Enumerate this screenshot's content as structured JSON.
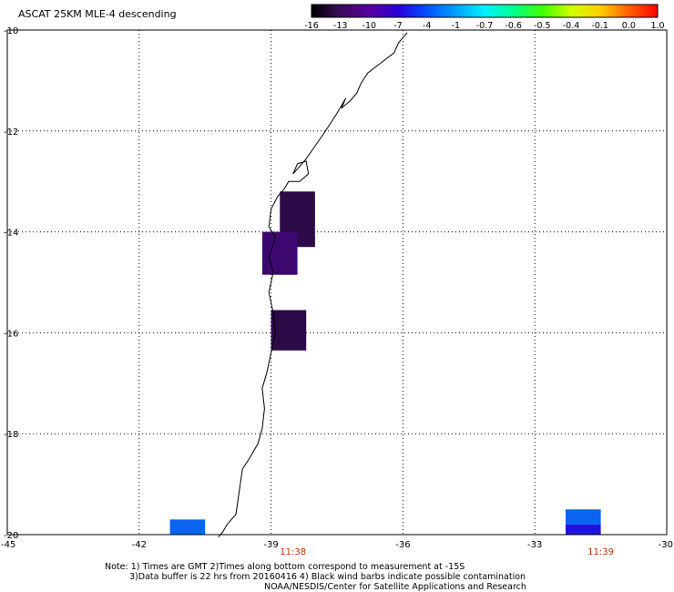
{
  "title": "ASCAT 25KM MLE-4 descending",
  "colorbar": {
    "labels": [
      "-16",
      "-13",
      "-10",
      "-7",
      "-4",
      "-1",
      "-0.7",
      "-0.6",
      "-0.5",
      "-0.4",
      "-0.1",
      "0.0",
      "1.0"
    ],
    "colors": [
      "#000000",
      "#3a0a5a",
      "#5a00a0",
      "#2a00d8",
      "#0050ff",
      "#00a0ff",
      "#00f0ff",
      "#00ff90",
      "#40ff00",
      "#d0ff00",
      "#ffd000",
      "#ff6000",
      "#ff0000"
    ]
  },
  "y_axis": {
    "labels": [
      "-10",
      "-12",
      "-14",
      "-16",
      "-18",
      "-20"
    ],
    "values": [
      -10,
      -12,
      -14,
      -16,
      -18,
      -20
    ]
  },
  "x_axis": {
    "labels": [
      "-45",
      "-42",
      "-39",
      "-36",
      "-33",
      "-30"
    ],
    "values": [
      -45,
      -42,
      -39,
      -36,
      -33,
      -30
    ]
  },
  "time_labels": [
    {
      "text": "11:38",
      "lon": -38.5
    },
    {
      "text": "11:39",
      "lon": -31.5
    }
  ],
  "time_label_color": "#c03000",
  "cells": [
    {
      "lon0": -38.8,
      "lon1": -38.0,
      "lat0": -13.2,
      "lat1": -14.3,
      "color": "#2c0a48"
    },
    {
      "lon0": -39.2,
      "lon1": -38.4,
      "lat0": -14.0,
      "lat1": -14.85,
      "color": "#3c0870"
    },
    {
      "lon0": -39.0,
      "lon1": -38.2,
      "lat0": -15.55,
      "lat1": -16.35,
      "color": "#2c0a48"
    },
    {
      "lon0": -41.3,
      "lon1": -40.5,
      "lat0": -19.7,
      "lat1": -20.0,
      "color": "#0a64f0"
    },
    {
      "lon0": -32.3,
      "lon1": -31.5,
      "lat0": -19.5,
      "lat1": -19.8,
      "color": "#0a64f0"
    },
    {
      "lon0": -32.3,
      "lon1": -31.5,
      "lat0": -19.8,
      "lat1": -20.0,
      "color": "#1e14dc"
    }
  ],
  "coastline": [
    [
      -35.9,
      -10.05
    ],
    [
      -36.1,
      -10.25
    ],
    [
      -36.2,
      -10.45
    ],
    [
      -36.5,
      -10.65
    ],
    [
      -36.8,
      -10.85
    ],
    [
      -36.95,
      -11.05
    ],
    [
      -37.05,
      -11.25
    ],
    [
      -37.2,
      -11.4
    ],
    [
      -37.4,
      -11.55
    ],
    [
      -37.3,
      -11.35
    ],
    [
      -37.5,
      -11.65
    ],
    [
      -37.65,
      -11.85
    ],
    [
      -37.8,
      -12.05
    ],
    [
      -38.0,
      -12.3
    ],
    [
      -38.2,
      -12.55
    ],
    [
      -38.4,
      -12.75
    ],
    [
      -38.5,
      -12.85
    ],
    [
      -38.4,
      -12.65
    ],
    [
      -38.2,
      -12.6
    ],
    [
      -38.15,
      -12.85
    ],
    [
      -38.35,
      -13.0
    ],
    [
      -38.6,
      -13.0
    ],
    [
      -38.7,
      -13.15
    ],
    [
      -38.85,
      -13.3
    ],
    [
      -39.0,
      -13.55
    ],
    [
      -39.05,
      -13.9
    ],
    [
      -38.9,
      -14.1
    ],
    [
      -39.05,
      -14.5
    ],
    [
      -38.95,
      -14.8
    ],
    [
      -39.05,
      -15.2
    ],
    [
      -38.95,
      -15.6
    ],
    [
      -38.9,
      -16.0
    ],
    [
      -39.0,
      -16.4
    ],
    [
      -39.1,
      -16.8
    ],
    [
      -39.2,
      -17.1
    ],
    [
      -39.15,
      -17.5
    ],
    [
      -39.2,
      -17.9
    ],
    [
      -39.3,
      -18.2
    ],
    [
      -39.5,
      -18.5
    ],
    [
      -39.65,
      -18.7
    ],
    [
      -39.7,
      -19.0
    ],
    [
      -39.75,
      -19.3
    ],
    [
      -39.8,
      -19.6
    ],
    [
      -40.0,
      -19.8
    ],
    [
      -40.1,
      -19.95
    ],
    [
      -40.2,
      -20.05
    ]
  ],
  "notes": [
    "Note: 1) Times are GMT 2)Times along bottom correspond to measurement at -15S",
    "3)Data buffer is 22 hrs from 20160416 4) Black wind barbs indicate possible contamination"
  ],
  "credit": "NOAA/NESDIS/Center for Satellite Applications and Research"
}
